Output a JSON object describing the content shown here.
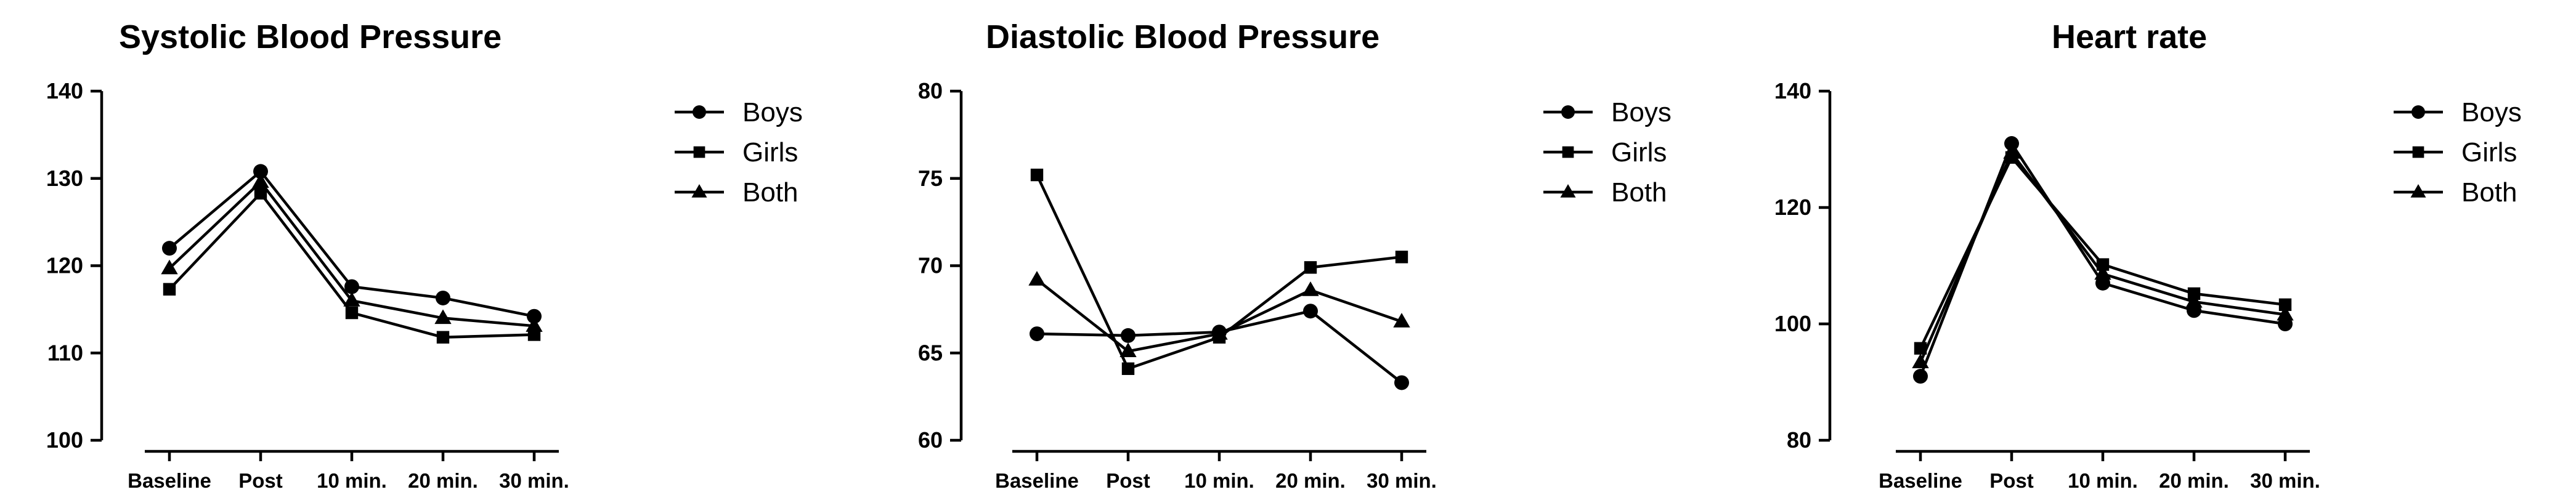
{
  "chart_data": [
    {
      "type": "line",
      "title": "Systolic Blood Pressure",
      "xlabel": "",
      "ylabel": "",
      "categories": [
        "Baseline",
        "Post",
        "10 min.",
        "20 min.",
        "30 min."
      ],
      "ylim": [
        100,
        140
      ],
      "yticks": [
        100,
        110,
        120,
        130,
        140
      ],
      "grid": false,
      "legend_position": "right",
      "series": [
        {
          "name": "Boys",
          "marker": "circle",
          "values": [
            122,
            130.8,
            117.6,
            116.3,
            114.2
          ]
        },
        {
          "name": "Girls",
          "marker": "square",
          "values": [
            117.3,
            128.3,
            114.6,
            111.8,
            112.1
          ]
        },
        {
          "name": "Both",
          "marker": "triangle",
          "values": [
            119.7,
            129.6,
            116.0,
            114.0,
            113.1
          ]
        }
      ]
    },
    {
      "type": "line",
      "title": "Diastolic Blood Pressure",
      "xlabel": "",
      "ylabel": "",
      "categories": [
        "Baseline",
        "Post",
        "10 min.",
        "20 min.",
        "30 min."
      ],
      "ylim": [
        60,
        80
      ],
      "yticks": [
        60,
        65,
        70,
        75,
        80
      ],
      "grid": false,
      "legend_position": "right",
      "series": [
        {
          "name": "Boys",
          "marker": "circle",
          "values": [
            66.1,
            66.0,
            66.2,
            67.4,
            63.3
          ]
        },
        {
          "name": "Girls",
          "marker": "square",
          "values": [
            75.2,
            64.1,
            65.9,
            69.9,
            70.5
          ]
        },
        {
          "name": "Both",
          "marker": "triangle",
          "values": [
            69.2,
            65.1,
            66.1,
            68.6,
            66.8
          ]
        }
      ]
    },
    {
      "type": "line",
      "title": "Heart rate",
      "xlabel": "",
      "ylabel": "",
      "categories": [
        "Baseline",
        "Post",
        "10 min.",
        "20 min.",
        "30 min."
      ],
      "ylim": [
        80,
        140
      ],
      "yticks": [
        80,
        100,
        120,
        140
      ],
      "grid": false,
      "legend_position": "right",
      "series": [
        {
          "name": "Boys",
          "marker": "circle",
          "values": [
            91,
            131,
            107,
            102.3,
            100
          ]
        },
        {
          "name": "Girls",
          "marker": "square",
          "values": [
            95.8,
            128.6,
            110.2,
            105.2,
            103.3
          ]
        },
        {
          "name": "Both",
          "marker": "triangle",
          "values": [
            93.4,
            129.4,
            108.6,
            103.8,
            101.6
          ]
        }
      ]
    }
  ]
}
